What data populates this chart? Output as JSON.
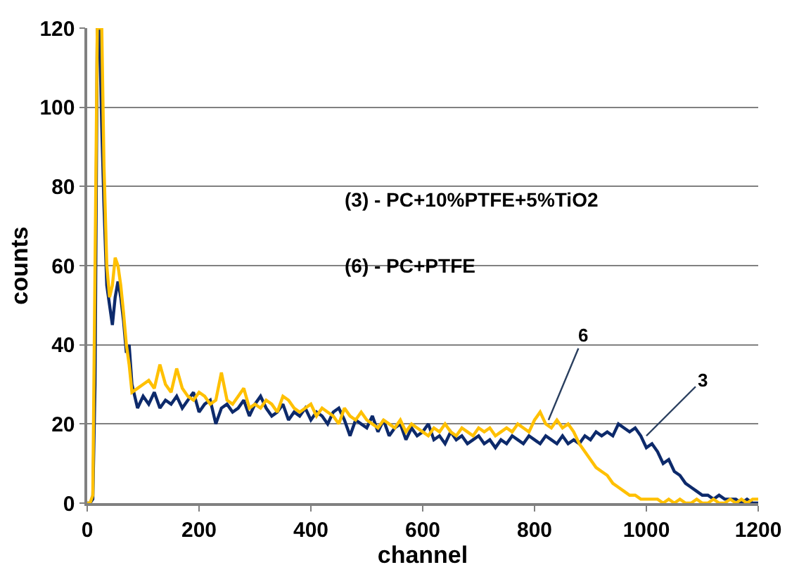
{
  "chart_data": {
    "type": "line",
    "xlabel": "channel",
    "ylabel": "counts",
    "x": [
      0,
      5,
      10,
      14,
      18,
      22,
      26,
      30,
      35,
      40,
      45,
      50,
      55,
      60,
      65,
      70,
      75,
      80,
      90,
      100,
      110,
      120,
      130,
      140,
      150,
      160,
      170,
      180,
      190,
      200,
      210,
      220,
      230,
      240,
      250,
      260,
      270,
      280,
      290,
      300,
      310,
      320,
      330,
      340,
      350,
      360,
      370,
      380,
      390,
      400,
      410,
      420,
      430,
      440,
      450,
      460,
      470,
      480,
      490,
      500,
      510,
      520,
      530,
      540,
      550,
      560,
      570,
      580,
      590,
      600,
      610,
      620,
      630,
      640,
      650,
      660,
      670,
      680,
      690,
      700,
      710,
      720,
      730,
      740,
      750,
      760,
      770,
      780,
      790,
      800,
      810,
      820,
      830,
      840,
      850,
      860,
      870,
      880,
      890,
      900,
      910,
      920,
      930,
      940,
      950,
      960,
      970,
      980,
      990,
      1000,
      1010,
      1020,
      1030,
      1040,
      1050,
      1060,
      1070,
      1080,
      1090,
      1100,
      1110,
      1120,
      1130,
      1140,
      1150,
      1160,
      1170,
      1180,
      1190,
      1200
    ],
    "series": [
      {
        "color": "#0d2a6b",
        "values": [
          0,
          0,
          1,
          30,
          120,
          120,
          95,
          75,
          55,
          50,
          45,
          52,
          56,
          52,
          46,
          38,
          40,
          30,
          24,
          27,
          25,
          28,
          24,
          26,
          25,
          27,
          24,
          26,
          28,
          23,
          25,
          26,
          20,
          24,
          25,
          23,
          24,
          26,
          22,
          25,
          27,
          24,
          22,
          23,
          25,
          21,
          23,
          22,
          24,
          21,
          23,
          22,
          20,
          23,
          24,
          21,
          17,
          21,
          20,
          19,
          22,
          18,
          21,
          17,
          19,
          20,
          16,
          19,
          17,
          18,
          20,
          16,
          17,
          15,
          18,
          16,
          17,
          15,
          16,
          17,
          15,
          16,
          14,
          16,
          15,
          17,
          16,
          15,
          17,
          16,
          15,
          17,
          16,
          15,
          17,
          15,
          16,
          15,
          17,
          16,
          18,
          17,
          18,
          17,
          20,
          19,
          18,
          19,
          17,
          14,
          15,
          13,
          10,
          11,
          8,
          7,
          5,
          4,
          3,
          2,
          2,
          1,
          2,
          1,
          1,
          1,
          0,
          1,
          0,
          0
        ]
      },
      {
        "color": "#ffc000",
        "values": [
          0,
          0,
          2,
          60,
          120,
          120,
          120,
          85,
          60,
          52,
          55,
          62,
          60,
          55,
          48,
          40,
          35,
          28,
          29,
          30,
          31,
          29,
          35,
          30,
          28,
          34,
          29,
          27,
          26,
          28,
          27,
          25,
          26,
          33,
          26,
          25,
          27,
          29,
          24,
          25,
          24,
          26,
          25,
          23,
          27,
          26,
          24,
          23,
          24,
          25,
          22,
          24,
          23,
          22,
          20,
          24,
          22,
          21,
          23,
          21,
          20,
          19,
          21,
          20,
          19,
          21,
          18,
          20,
          19,
          18,
          17,
          19,
          18,
          20,
          18,
          17,
          19,
          18,
          17,
          19,
          18,
          19,
          17,
          18,
          19,
          18,
          20,
          19,
          18,
          21,
          23,
          20,
          19,
          21,
          19,
          20,
          18,
          15,
          13,
          11,
          9,
          8,
          7,
          5,
          4,
          3,
          2,
          2,
          1,
          1,
          1,
          1,
          0,
          1,
          0,
          1,
          0,
          0,
          1,
          0,
          0,
          1,
          0,
          0,
          1,
          0,
          1,
          0,
          1,
          1
        ]
      }
    ],
    "annotations": [
      "(3) - PC+10%PTFE+5%TiO2",
      "(6) - PC+PTFE",
      {
        "text": "6",
        "x": 825,
        "y": 21
      },
      {
        "text": "3",
        "x": 1000,
        "y": 17
      }
    ],
    "xlim": [
      0,
      1200
    ],
    "xticks": [
      0,
      200,
      400,
      600,
      800,
      1000,
      1200
    ],
    "ylim": [
      0,
      120
    ],
    "yticks": [
      0,
      20,
      40,
      60,
      80,
      100,
      120
    ],
    "grid": "y",
    "legend": false,
    "marker": "none",
    "line_style": "solid"
  }
}
